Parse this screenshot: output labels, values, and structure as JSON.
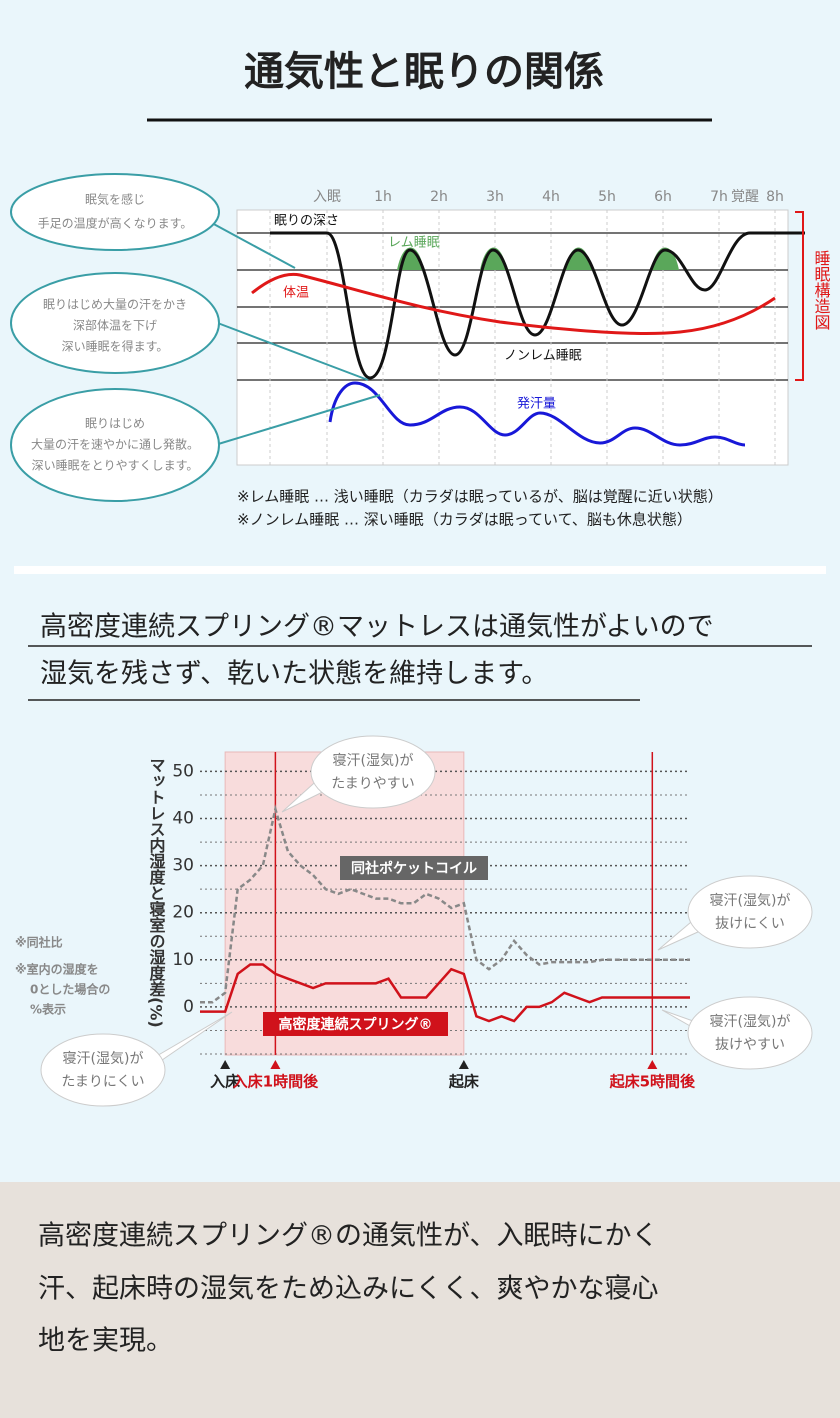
{
  "header": {
    "title": "通気性と眠りの関係"
  },
  "sleep_diagram": {
    "time_labels": [
      "入眠",
      "1h",
      "2h",
      "3h",
      "4h",
      "5h",
      "6h",
      "7h",
      "覚醒",
      "8h"
    ],
    "depth_label": "眠りの深さ",
    "rem_label": "レム睡眠",
    "temp_label": "体温",
    "nonrem_label": "ノンレム睡眠",
    "sweat_label": "発汗量",
    "side_label": "睡眠構造図",
    "notes": [
      [
        "眠気を感じ",
        "手足の温度が高くなります。"
      ],
      [
        "眠りはじめ大量の汗をかき",
        "深部体温を下げ",
        "深い睡眠を得ます。"
      ],
      [
        "眠りはじめ",
        "大量の汗を速やかに通し発散。",
        "深い睡眠をとりやすくします。"
      ]
    ],
    "footnotes": [
      "※レム睡眠 … 浅い睡眠（カラダは眠っているが、脳は覚醒に近い状態）",
      "※ノンレム睡眠 … 深い睡眠（カラダは眠っていて、脳も休息状態）"
    ]
  },
  "message": {
    "lines": [
      "高密度連続スプリング®マットレスは通気性がよいので",
      "湿気を残さず、乾いた状態を維持します。"
    ]
  },
  "chart_data": {
    "type": "line",
    "y_label": "マットレス内湿度と寝室の湿度差(%)",
    "categories": [
      null,
      null,
      "入床",
      null,
      null,
      null,
      "入床1時間後",
      null,
      null,
      null,
      null,
      null,
      null,
      null,
      null,
      null,
      null,
      null,
      null,
      null,
      null,
      "起床",
      null,
      null,
      null,
      null,
      null,
      null,
      null,
      null,
      null,
      null,
      null,
      null,
      null,
      null,
      "起床5時間後",
      null,
      null,
      null
    ],
    "category_colors": [
      null,
      null,
      "#222",
      null,
      null,
      null,
      "#d0121b",
      null,
      null,
      null,
      null,
      null,
      null,
      null,
      null,
      null,
      null,
      null,
      null,
      null,
      null,
      "#222",
      null,
      null,
      null,
      null,
      null,
      null,
      null,
      null,
      null,
      null,
      null,
      null,
      null,
      null,
      "#d0121b",
      null,
      null,
      null
    ],
    "ylim": [
      -10,
      52
    ],
    "yticks": [
      0,
      10,
      20,
      30,
      40,
      50
    ],
    "grid": true,
    "series": [
      {
        "name": "同社ポケットコイル",
        "color": "#888888",
        "values": [
          1,
          1,
          3,
          25,
          27,
          30,
          42,
          33,
          30,
          28,
          25,
          24,
          25,
          24,
          23,
          23,
          22,
          22,
          24,
          23,
          21,
          22,
          10,
          8,
          10,
          14,
          11,
          9,
          9.5,
          9.5,
          9.5,
          9.5,
          10,
          10,
          10,
          10,
          10,
          10,
          10,
          10
        ]
      },
      {
        "name": "高密度連続スプリング®",
        "color": "#d0121b",
        "values": [
          -1,
          -1,
          -1,
          7,
          9,
          9,
          7,
          6,
          5,
          4,
          5,
          5,
          5,
          5,
          5,
          6,
          2,
          2,
          2,
          5,
          8,
          7,
          -2,
          -3,
          -2,
          -3,
          0,
          0,
          1,
          3,
          2,
          1,
          2,
          2,
          2,
          2,
          2,
          2,
          2,
          2
        ]
      }
    ],
    "annotations": [
      [
        "寝汗(湿気)が",
        "たまりやすい"
      ],
      [
        "寝汗(湿気)が",
        "抜けにくい"
      ],
      [
        "寝汗(湿気)が",
        "抜けやすい"
      ],
      [
        "寝汗(湿気)が",
        "たまりにくい"
      ]
    ],
    "notes": [
      "※同社比",
      "※室内の湿度を",
      "0とした場合の",
      "%表示"
    ]
  },
  "footer": {
    "lines": [
      "高密度連続スプリング®の通気性が、入眠時にかく",
      "汗、起床時の湿気をため込みにくく、爽やかな寝心",
      "地を実現。"
    ]
  }
}
